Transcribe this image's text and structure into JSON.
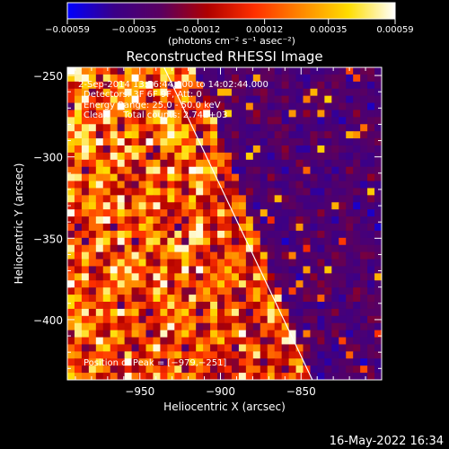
{
  "chart_data": {
    "type": "heatmap",
    "title": "Reconstructed RHESSI Image",
    "xlabel": "Heliocentric X (arcsec)",
    "ylabel": "Heliocentric Y (arcsec)",
    "xlim": [
      -995,
      -800
    ],
    "ylim": [
      -437,
      -245
    ],
    "x_ticks": [
      -950,
      -900,
      -850
    ],
    "x_tick_labels": [
      "−950",
      "−900",
      "−850"
    ],
    "y_ticks": [
      -250,
      -300,
      -350,
      -400
    ],
    "y_tick_labels": [
      "−250",
      "−300",
      "−350",
      "−400"
    ],
    "colorbar": {
      "ticks": [
        -0.00059,
        -0.00035,
        -0.00012,
        0.00012,
        0.00035,
        0.00059
      ],
      "tick_labels": [
        "−0.00059",
        "−0.00035",
        "−0.00012",
        "0.00012",
        "0.00035",
        "0.00059"
      ],
      "unit_label": "(photons cm⁻² s⁻¹ asec⁻²)",
      "colormap": [
        "#0000ff",
        "#3a0088",
        "#5a0060",
        "#b00000",
        "#ff3000",
        "#ff8800",
        "#ffdd00",
        "#ffffff"
      ]
    },
    "annotations": [
      "2-Sep-2014 13:56:44.000 to 14:02:44.000",
      "Detectors: 3F 6F 9F, Att: 0",
      "Energy Range: 25.0 - 50.0 keV",
      "Clean     Total counts: 2.74E+03"
    ],
    "peak_label": "Position of Peak = [−979,−251]",
    "peak": [
      -979,
      -251
    ],
    "limb_line": [
      [
        -935,
        -245
      ],
      [
        -843,
        -437
      ]
    ],
    "grid": false
  },
  "footer": {
    "timestamp": "16-May-2022 16:34"
  }
}
